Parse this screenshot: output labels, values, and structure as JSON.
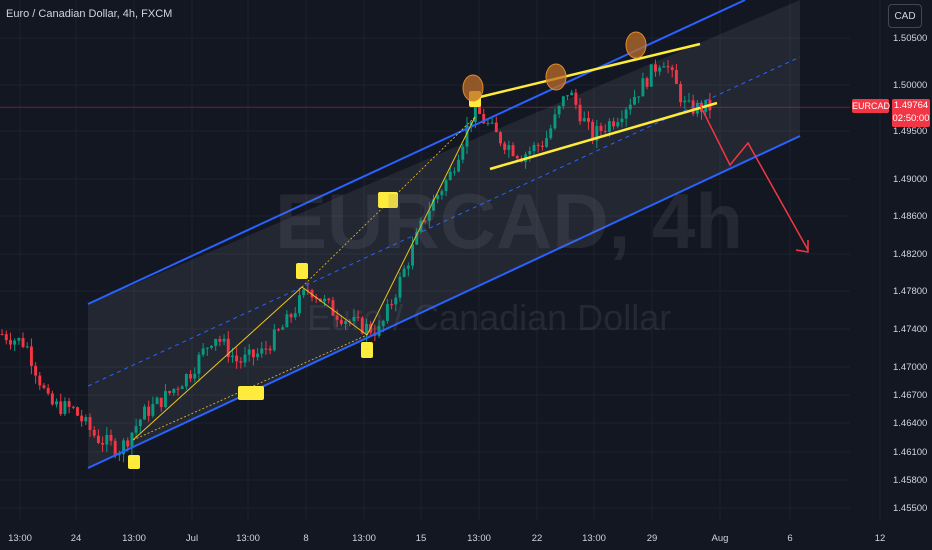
{
  "header": {
    "title": "Euro / Canadian Dollar, 4h, FXCM",
    "currency": "CAD"
  },
  "watermark": {
    "symbol": "EURCAD, 4h",
    "name": "Euro / Canadian Dollar"
  },
  "price_marker": {
    "symbol": "EURCAD",
    "price": "1.49764",
    "countdown": "02:50:00"
  },
  "colors": {
    "background": "#131722",
    "channel": "#2962ff",
    "wedge": "#ffeb3b",
    "bullish": "#089981",
    "bearish": "#f23645",
    "projection": "#f23645"
  },
  "chart_data": {
    "type": "candlestick",
    "instrument": "EURCAD",
    "timeframe": "4h",
    "x_tick_labels": [
      "13:00",
      "24",
      "13:00",
      "Jul",
      "13:00",
      "8",
      "13:00",
      "15",
      "13:00",
      "22",
      "13:00",
      "29",
      "Aug",
      "6",
      "12"
    ],
    "y_tick_labels": [
      "1.50500",
      "1.50000",
      "1.49500",
      "1.49000",
      "1.48600",
      "1.48200",
      "1.47800",
      "1.47400",
      "1.47000",
      "1.46700",
      "1.46400",
      "1.46100",
      "1.45800",
      "1.45500"
    ],
    "ylim": [
      1.455,
      1.507
    ],
    "last_price": 1.49764,
    "price_path": [
      {
        "x": "Jun 21 13:00",
        "y": 1.4735
      },
      {
        "x": "Jun 22",
        "y": 1.4725
      },
      {
        "x": "Jun 23",
        "y": 1.466
      },
      {
        "x": "Jun 24",
        "y": 1.4655
      },
      {
        "x": "Jun 25",
        "y": 1.4625
      },
      {
        "x": "Jun 26",
        "y": 1.4612
      },
      {
        "x": "Jun 27",
        "y": 1.465
      },
      {
        "x": "Jun 28",
        "y": 1.467
      },
      {
        "x": "Jul 1",
        "y": 1.4695
      },
      {
        "x": "Jul 2",
        "y": 1.4735
      },
      {
        "x": "Jul 3",
        "y": 1.4705
      },
      {
        "x": "Jul 4",
        "y": 1.4715
      },
      {
        "x": "Jul 5",
        "y": 1.4745
      },
      {
        "x": "Jul 8",
        "y": 1.4785
      },
      {
        "x": "Jul 9",
        "y": 1.476
      },
      {
        "x": "Jul 10",
        "y": 1.4745
      },
      {
        "x": "Jul 11",
        "y": 1.4738
      },
      {
        "x": "Jul 12",
        "y": 1.48
      },
      {
        "x": "Jul 15",
        "y": 1.4865
      },
      {
        "x": "Jul 16",
        "y": 1.4905
      },
      {
        "x": "Jul 17",
        "y": 1.4975
      },
      {
        "x": "Jul 18",
        "y": 1.4945
      },
      {
        "x": "Jul 19",
        "y": 1.4925
      },
      {
        "x": "Jul 22",
        "y": 1.494
      },
      {
        "x": "Jul 23",
        "y": 1.4995
      },
      {
        "x": "Jul 24",
        "y": 1.4945
      },
      {
        "x": "Jul 25",
        "y": 1.4965
      },
      {
        "x": "Jul 26",
        "y": 1.4995
      },
      {
        "x": "Jul 29",
        "y": 1.503
      },
      {
        "x": "Jul 30",
        "y": 1.4975
      },
      {
        "x": "Jul 31",
        "y": 1.49764
      }
    ],
    "annotations": {
      "ascending_channel": "blue parallel channel (upper, mid dashed, lower)",
      "rising_wedge": "yellow converging lines at top",
      "projection": "red arrow down toward channel bottom"
    }
  }
}
